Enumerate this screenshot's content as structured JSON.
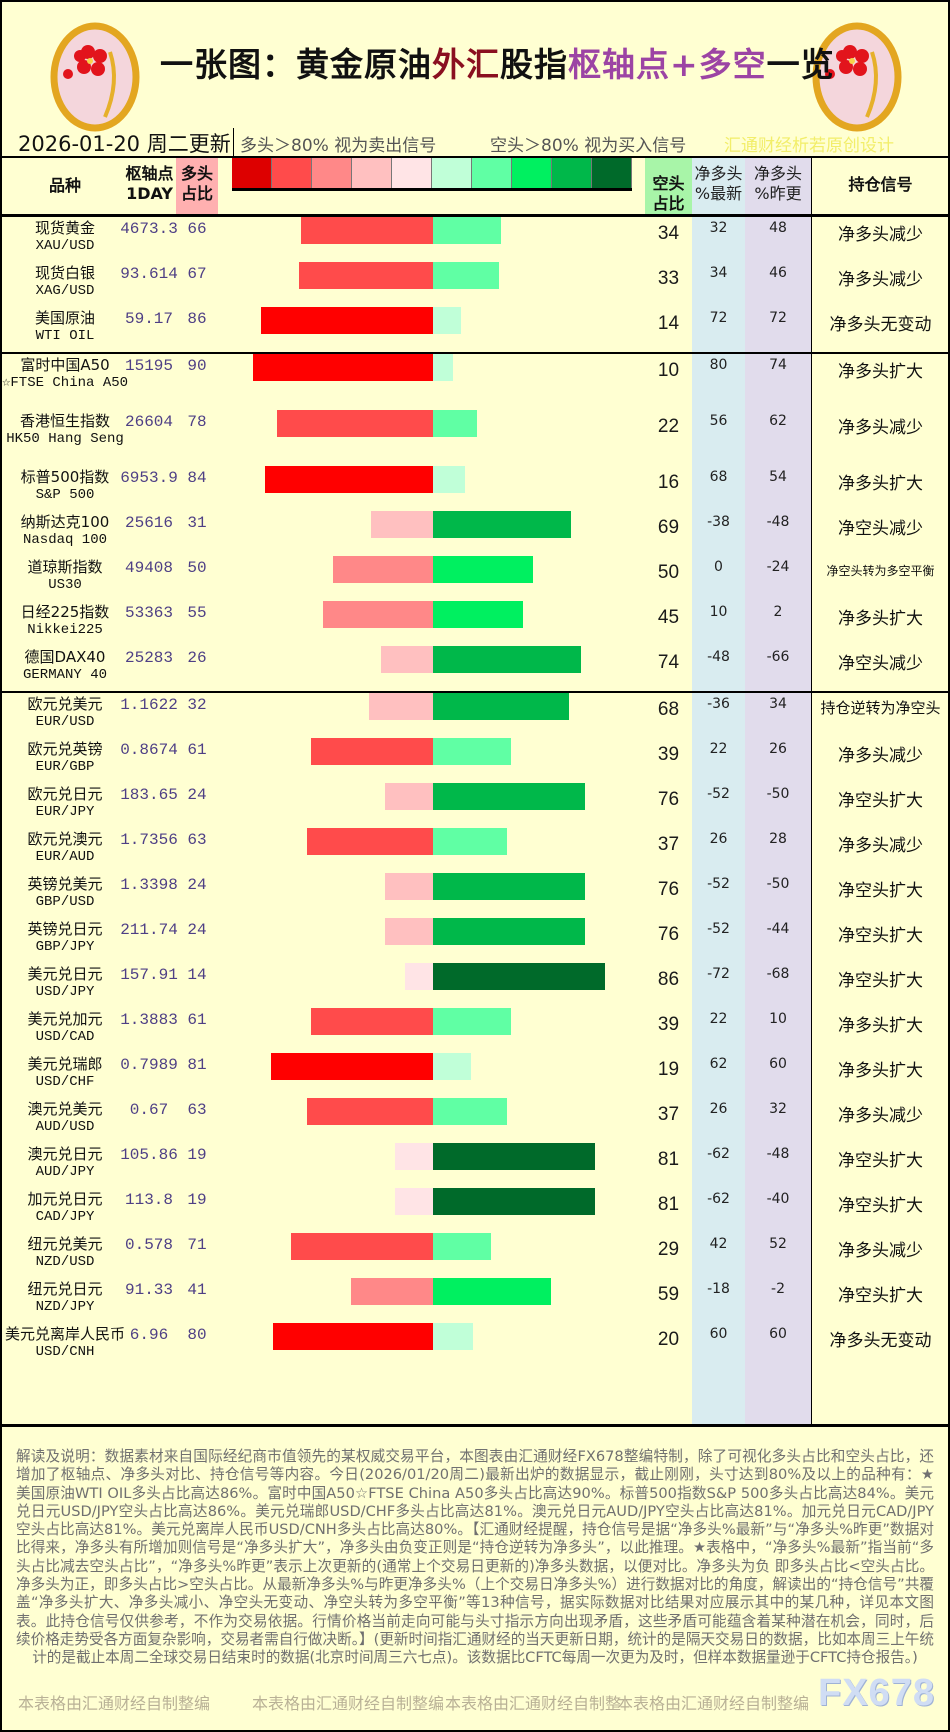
{
  "header": {
    "title_parts": [
      "一张图：黄金原油",
      "外汇",
      "股指",
      "枢轴点+多空",
      "一览"
    ],
    "date": "2026-01-20 周二更新",
    "legend_long": "多头＞80% 视为卖出信号",
    "legend_short": "空头＞80% 视为买入信号",
    "designer": "汇通财经析若原创设计",
    "logo_icon": "plum-blossom-medallion"
  },
  "columns": {
    "name": "品种",
    "pivot": "枢轴点",
    "pivot_sub": "1DAY",
    "long": "多头",
    "long_sub": "占比",
    "short": "空头",
    "short_sub": "占比",
    "net_new": "净多头",
    "net_new_sub": "%最新",
    "net_prev": "净多头",
    "net_prev_sub": "%昨更",
    "signal": "持仓信号"
  },
  "colors": {
    "long_scale": [
      "#dd0000",
      "#ff4b4b",
      "#ff8888",
      "#ffc0c0",
      "#ffe4e6"
    ],
    "short_scale": [
      "#c0ffd8",
      "#60ffa4",
      "#00f060",
      "#00b84a",
      "#006a2a"
    ],
    "long_bar_strong": "#ff0000"
  },
  "rows": [
    {
      "name_cn": "现货黄金",
      "name_en": "XAU/USD",
      "pivot": "4673.3",
      "long": 66,
      "short": 34,
      "net_new": "32",
      "net_prev": "48",
      "signal": "净多头减少"
    },
    {
      "name_cn": "现货白银",
      "name_en": "XAG/USD",
      "pivot": "93.614",
      "long": 67,
      "short": 33,
      "net_new": "34",
      "net_prev": "46",
      "signal": "净多头减少"
    },
    {
      "name_cn": "美国原油",
      "name_en": "WTI OIL",
      "pivot": "59.17",
      "long": 86,
      "short": 14,
      "net_new": "72",
      "net_prev": "72",
      "signal": "净多头无变动"
    },
    {
      "name_cn": "富时中国A50",
      "name_en": "☆FTSE China A50",
      "pivot": "15195",
      "long": 90,
      "short": 10,
      "net_new": "80",
      "net_prev": "74",
      "signal": "净多头扩大",
      "group_start": true,
      "tall": true
    },
    {
      "name_cn": "香港恒生指数",
      "name_en": "HK50 Hang Seng",
      "pivot": "26604",
      "long": 78,
      "short": 22,
      "net_new": "56",
      "net_prev": "62",
      "signal": "净多头减少",
      "tall": true
    },
    {
      "name_cn": "标普500指数",
      "name_en": "S&P 500",
      "pivot": "6953.9",
      "long": 84,
      "short": 16,
      "net_new": "68",
      "net_prev": "54",
      "signal": "净多头扩大"
    },
    {
      "name_cn": "纳斯达克100",
      "name_en": "Nasdaq 100",
      "pivot": "25616",
      "long": 31,
      "short": 69,
      "net_new": "-38",
      "net_prev": "-48",
      "signal": "净空头减少"
    },
    {
      "name_cn": "道琼斯指数",
      "name_en": "US30",
      "pivot": "49408",
      "long": 50,
      "short": 50,
      "net_new": "0",
      "net_prev": "-24",
      "signal": "净空头转为多空平衡"
    },
    {
      "name_cn": "日经225指数",
      "name_en": "Nikkei225",
      "pivot": "53363",
      "long": 55,
      "short": 45,
      "net_new": "10",
      "net_prev": "2",
      "signal": "净多头扩大"
    },
    {
      "name_cn": "德国DAX40",
      "name_en": "GERMANY 40",
      "pivot": "25283",
      "long": 26,
      "short": 74,
      "net_new": "-48",
      "net_prev": "-66",
      "signal": "净空头减少"
    },
    {
      "name_cn": "欧元兑美元",
      "name_en": "EUR/USD",
      "pivot": "1.1622",
      "long": 32,
      "short": 68,
      "net_new": "-36",
      "net_prev": "34",
      "signal": "持仓逆转为净空头",
      "group_start": true
    },
    {
      "name_cn": "欧元兑英镑",
      "name_en": "EUR/GBP",
      "pivot": "0.8674",
      "long": 61,
      "short": 39,
      "net_new": "22",
      "net_prev": "26",
      "signal": "净多头减少"
    },
    {
      "name_cn": "欧元兑日元",
      "name_en": "EUR/JPY",
      "pivot": "183.65",
      "long": 24,
      "short": 76,
      "net_new": "-52",
      "net_prev": "-50",
      "signal": "净空头扩大"
    },
    {
      "name_cn": "欧元兑澳元",
      "name_en": "EUR/AUD",
      "pivot": "1.7356",
      "long": 63,
      "short": 37,
      "net_new": "26",
      "net_prev": "28",
      "signal": "净多头减少"
    },
    {
      "name_cn": "英镑兑美元",
      "name_en": "GBP/USD",
      "pivot": "1.3398",
      "long": 24,
      "short": 76,
      "net_new": "-52",
      "net_prev": "-50",
      "signal": "净空头扩大"
    },
    {
      "name_cn": "英镑兑日元",
      "name_en": "GBP/JPY",
      "pivot": "211.74",
      "long": 24,
      "short": 76,
      "net_new": "-52",
      "net_prev": "-44",
      "signal": "净空头扩大"
    },
    {
      "name_cn": "美元兑日元",
      "name_en": "USD/JPY",
      "pivot": "157.91",
      "long": 14,
      "short": 86,
      "net_new": "-72",
      "net_prev": "-68",
      "signal": "净空头扩大"
    },
    {
      "name_cn": "美元兑加元",
      "name_en": "USD/CAD",
      "pivot": "1.3883",
      "long": 61,
      "short": 39,
      "net_new": "22",
      "net_prev": "10",
      "signal": "净多头扩大"
    },
    {
      "name_cn": "美元兑瑞郎",
      "name_en": "USD/CHF",
      "pivot": "0.7989",
      "long": 81,
      "short": 19,
      "net_new": "62",
      "net_prev": "60",
      "signal": "净多头扩大"
    },
    {
      "name_cn": "澳元兑美元",
      "name_en": "AUD/USD",
      "pivot": "0.67",
      "long": 63,
      "short": 37,
      "net_new": "26",
      "net_prev": "32",
      "signal": "净多头减少"
    },
    {
      "name_cn": "澳元兑日元",
      "name_en": "AUD/JPY",
      "pivot": "105.86",
      "long": 19,
      "short": 81,
      "net_new": "-62",
      "net_prev": "-48",
      "signal": "净空头扩大"
    },
    {
      "name_cn": "加元兑日元",
      "name_en": "CAD/JPY",
      "pivot": "113.8",
      "long": 19,
      "short": 81,
      "net_new": "-62",
      "net_prev": "-40",
      "signal": "净空头扩大"
    },
    {
      "name_cn": "纽元兑美元",
      "name_en": "NZD/USD",
      "pivot": "0.578",
      "long": 71,
      "short": 29,
      "net_new": "42",
      "net_prev": "52",
      "signal": "净多头减少"
    },
    {
      "name_cn": "纽元兑日元",
      "name_en": "NZD/JPY",
      "pivot": "91.33",
      "long": 41,
      "short": 59,
      "net_new": "-18",
      "net_prev": "-2",
      "signal": "净空头扩大"
    },
    {
      "name_cn": "美元兑离岸人民币",
      "name_en": "USD/CNH",
      "pivot": "6.96",
      "long": 80,
      "short": 20,
      "net_new": "60",
      "net_prev": "60",
      "signal": "净多头无变动",
      "tall": true
    }
  ],
  "footer": {
    "text": "解读及说明：数据素材来自国际经纪商市值领先的某权威交易平台，本图表由汇通财经FX678整编特制，除了可视化多头占比和空头占比，还增加了枢轴点、净多头对比、持仓信号等内容。今日(2026/01/20周二)最新出炉的数据显示，截止刚刚，头寸达到80%及以上的品种有：★ 美国原油WTI OIL多头占比高达86%。富时中国A50☆FTSE China A50多头占比高达90%。标普500指数S&P 500多头占比高达84%。美元兑日元USD/JPY空头占比高达86%。美元兑瑞郎USD/CHF多头占比高达81%。澳元兑日元AUD/JPY空头占比高达81%。加元兑日元CAD/JPY空头占比高达81%。美元兑离岸人民币USD/CNH多头占比高达80%。【汇通财经提醒，持仓信号是据“净多头%最新”与“净多头%昨更”数据对比得来，净多头有所增加则信号是“净多头扩大”，净多头由负变正则是“持仓逆转为净多头”，以此推理。★表格中，“净多头%最新”指当前“多头占比减去空头占比”，“净多头%昨更”表示上次更新的(通常上个交易日更新的)净多头数据，以便对比。净多头为负 即多头占比<空头占比。净多头为正，即多头占比>空头占比。从最新净多头%与昨更净多头%（上个交易日净多头%）进行数据对比的角度，解读出的“持仓信号”共覆盖“净多头扩大、净多头减小、净空头无变动、净空头转为多空平衡”等13种信号，据实际数据对比结果对应展示其中的某几种，详见本文图表。此持仓信号仅供参考，不作为交易依据。行情价格当前走向可能与头寸指示方向出现矛盾，这些矛盾可能蕴含着某种潜在机会，同时，后续价格走势受各方面复杂影响，交易者需自行做决断。】(更新时间指汇通财经的当天更新日期，统计的是隔天交易日的数据，比如本周三上午统计的是截止本周二全球交易日结束时的数据(北京时间周三六七点)。该数据比CFTC每周一次更为及时，但样本数据量逊于CFTC持仓报告。)",
    "watermarks": [
      "本表格由汇通财经自制整编",
      "本表格由汇通财经自制整编",
      "本表格由汇通财经自制整",
      "本表格由汇通财经自制整编"
    ],
    "brand": "FX678"
  }
}
